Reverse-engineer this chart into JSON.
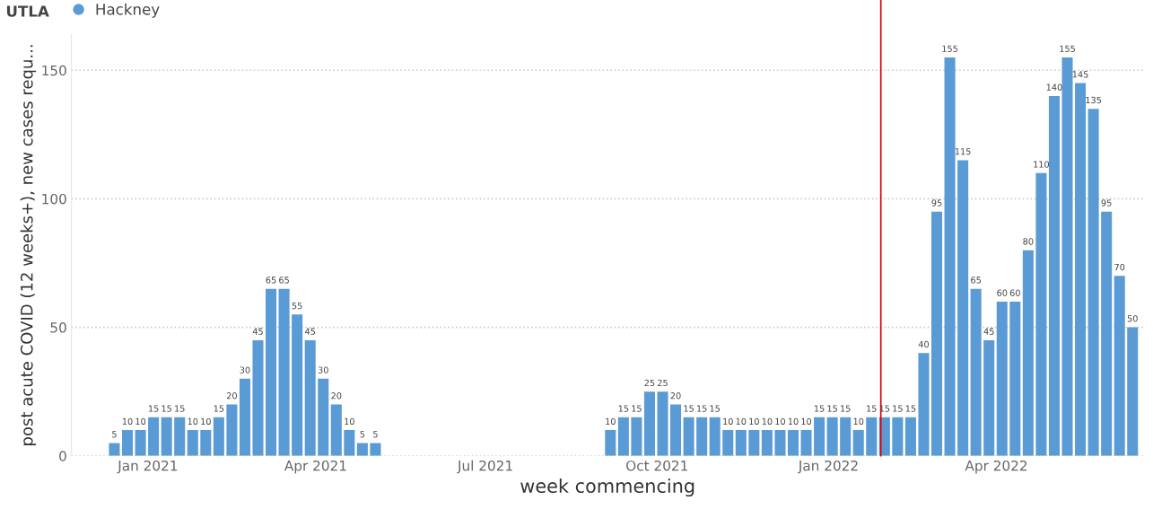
{
  "chart_data": {
    "type": "bar",
    "xlabel": "week commencing",
    "ylabel": "post acute COVID (12 weeks+), new cases requ...",
    "legend_title": "UTLA",
    "legend": "top left",
    "grid": "y",
    "data_labels": true,
    "x": [
      "2020-12-14",
      "2020-12-21",
      "2020-12-28",
      "2021-01-04",
      "2021-01-11",
      "2021-01-18",
      "2021-01-25",
      "2021-02-01",
      "2021-02-08",
      "2021-02-15",
      "2021-02-22",
      "2021-03-01",
      "2021-03-08",
      "2021-03-15",
      "2021-03-22",
      "2021-03-29",
      "2021-04-05",
      "2021-04-12",
      "2021-04-19",
      "2021-04-26",
      "2021-05-03",
      "2021-09-06",
      "2021-09-13",
      "2021-09-20",
      "2021-09-27",
      "2021-10-04",
      "2021-10-11",
      "2021-10-18",
      "2021-10-25",
      "2021-11-01",
      "2021-11-08",
      "2021-11-15",
      "2021-11-22",
      "2021-11-29",
      "2021-12-06",
      "2021-12-13",
      "2021-12-20",
      "2021-12-27",
      "2022-01-03",
      "2022-01-10",
      "2022-01-17",
      "2022-01-24",
      "2022-01-31",
      "2022-02-07",
      "2022-02-14",
      "2022-02-21",
      "2022-02-28",
      "2022-03-07",
      "2022-03-14",
      "2022-03-21",
      "2022-03-28",
      "2022-04-04",
      "2022-04-11",
      "2022-04-18",
      "2022-04-25",
      "2022-05-02",
      "2022-05-09",
      "2022-05-16",
      "2022-05-23",
      "2022-05-30",
      "2022-06-06",
      "2022-06-13"
    ],
    "series": [
      {
        "name": "Hackney",
        "color": "#5b9bd5",
        "values": [
          5,
          10,
          10,
          15,
          15,
          15,
          10,
          10,
          15,
          20,
          30,
          45,
          65,
          65,
          55,
          45,
          30,
          20,
          10,
          5,
          5,
          10,
          15,
          15,
          25,
          25,
          20,
          15,
          15,
          15,
          10,
          10,
          10,
          10,
          10,
          10,
          10,
          15,
          15,
          15,
          10,
          15,
          15,
          15,
          15,
          40,
          95,
          155,
          115,
          65,
          45,
          60,
          60,
          80,
          110,
          140,
          155,
          145,
          135,
          95,
          70,
          50
        ]
      }
    ],
    "xlim": [
      "2020-11-21",
      "2022-06-19"
    ],
    "xticks": [
      {
        "value": "2021-01-01",
        "label": "Jan 2021"
      },
      {
        "value": "2021-04-01",
        "label": "Apr 2021"
      },
      {
        "value": "2021-07-01",
        "label": "Jul 2021"
      },
      {
        "value": "2021-10-01",
        "label": "Oct 2021"
      },
      {
        "value": "2022-01-01",
        "label": "Jan 2022"
      },
      {
        "value": "2022-04-01",
        "label": "Apr 2022"
      }
    ],
    "ylim": [
      0,
      164
    ],
    "yticks": [
      0,
      50,
      100,
      150
    ],
    "ref_lines": [
      {
        "axis": "x",
        "value": "2022-01-29",
        "label": null,
        "color": "#e00000",
        "line_style": "solid"
      }
    ]
  }
}
